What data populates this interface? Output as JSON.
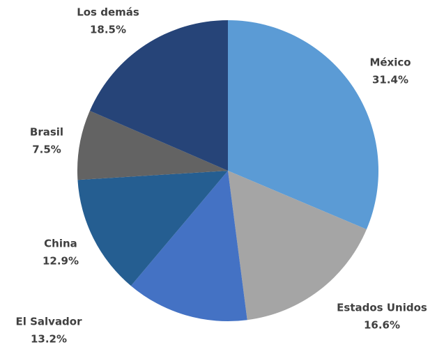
{
  "chart_data": {
    "type": "pie",
    "categories": [
      "México",
      "Estados Unidos",
      "El Salvador",
      "China",
      "Brasil",
      "Los demás"
    ],
    "values": [
      31.4,
      16.6,
      13.2,
      12.9,
      7.5,
      18.5
    ],
    "value_labels": [
      "31.4%",
      "16.6%",
      "13.2%",
      "12.9%",
      "7.5%",
      "18.5%"
    ],
    "colors": [
      "#5b9bd5",
      "#a5a5a5",
      "#4472c4",
      "#255e91",
      "#636363",
      "#264478"
    ]
  }
}
